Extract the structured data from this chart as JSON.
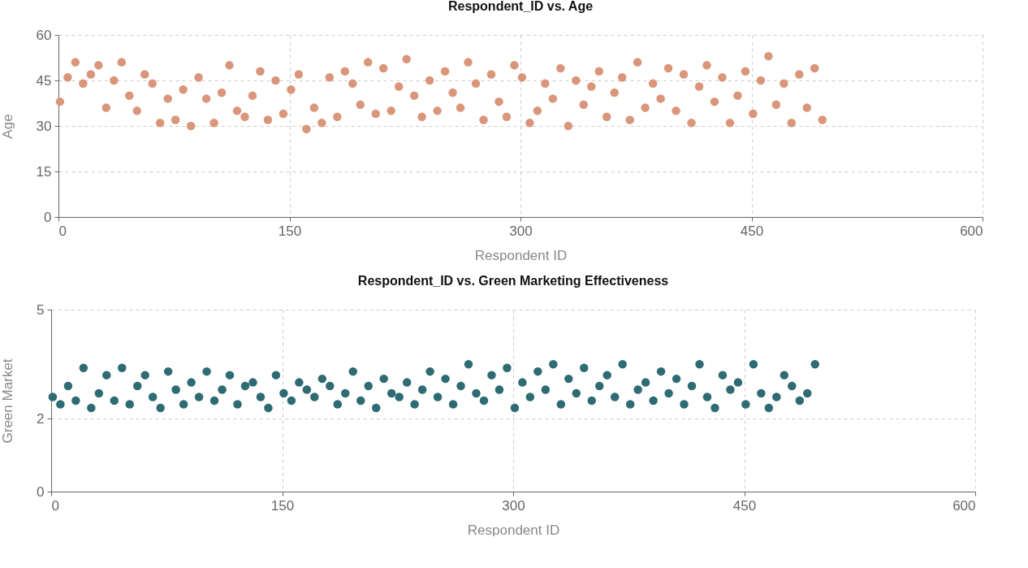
{
  "chart_data": [
    {
      "type": "scatter",
      "title": "Respondent_ID vs. Age",
      "xlabel": "Respondent ID",
      "ylabel": "Age",
      "xlim": [
        0,
        600
      ],
      "xticks": [
        0,
        150,
        300,
        450,
        600
      ],
      "ylim": [
        0,
        60
      ],
      "yticks": [
        0,
        15,
        30,
        45,
        60
      ],
      "grid": true,
      "marker": "circle",
      "x": [
        1,
        6,
        11,
        16,
        21,
        26,
        31,
        36,
        41,
        46,
        51,
        56,
        61,
        66,
        71,
        76,
        81,
        86,
        91,
        96,
        101,
        106,
        111,
        116,
        121,
        126,
        131,
        136,
        141,
        146,
        151,
        156,
        161,
        166,
        171,
        176,
        181,
        186,
        191,
        196,
        201,
        206,
        211,
        216,
        221,
        226,
        231,
        236,
        241,
        246,
        251,
        256,
        261,
        266,
        271,
        276,
        281,
        286,
        291,
        296,
        301,
        306,
        311,
        316,
        321,
        326,
        331,
        336,
        341,
        346,
        351,
        356,
        361,
        366,
        371,
        376,
        381,
        386,
        391,
        396,
        401,
        406,
        411,
        416,
        421,
        426,
        431,
        436,
        441,
        446,
        451,
        456,
        461,
        466,
        471,
        476,
        481,
        486,
        491,
        496
      ],
      "series": [
        {
          "color": "#d9967a",
          "values": [
            38,
            46,
            51,
            44,
            47,
            50,
            36,
            45,
            51,
            40,
            35,
            47,
            44,
            31,
            39,
            32,
            42,
            30,
            46,
            39,
            31,
            41,
            50,
            35,
            33,
            40,
            48,
            32,
            45,
            34,
            42,
            47,
            29,
            36,
            31,
            46,
            33,
            48,
            44,
            37,
            51,
            34,
            49,
            35,
            43,
            52,
            40,
            33,
            45,
            35,
            48,
            41,
            36,
            51,
            44,
            32,
            47,
            38,
            33,
            50,
            46,
            31,
            35,
            44,
            39,
            49,
            30,
            45,
            37,
            43,
            48,
            33,
            41,
            46,
            32,
            51,
            36,
            44,
            39,
            49,
            35,
            47,
            31,
            43,
            50,
            38,
            46,
            31,
            40,
            48,
            34,
            45,
            53,
            37,
            44,
            31,
            47,
            36,
            49,
            32
          ]
        }
      ]
    },
    {
      "type": "scatter",
      "title": "Respondent_ID vs. Green Marketing Effectiveness",
      "xlabel": "Respondent ID",
      "ylabel": "Green Market",
      "xlim": [
        0,
        600
      ],
      "xticks": [
        0,
        150,
        300,
        450,
        600
      ],
      "ylim": [
        0,
        5
      ],
      "yticks": [
        0,
        2,
        5
      ],
      "grid": true,
      "marker": "circle",
      "x": [
        1,
        6,
        11,
        16,
        21,
        26,
        31,
        36,
        41,
        46,
        51,
        56,
        61,
        66,
        71,
        76,
        81,
        86,
        91,
        96,
        101,
        106,
        111,
        116,
        121,
        126,
        131,
        136,
        141,
        146,
        151,
        156,
        161,
        166,
        171,
        176,
        181,
        186,
        191,
        196,
        201,
        206,
        211,
        216,
        221,
        226,
        231,
        236,
        241,
        246,
        251,
        256,
        261,
        266,
        271,
        276,
        281,
        286,
        291,
        296,
        301,
        306,
        311,
        316,
        321,
        326,
        331,
        336,
        341,
        346,
        351,
        356,
        361,
        366,
        371,
        376,
        381,
        386,
        391,
        396,
        401,
        406,
        411,
        416,
        421,
        426,
        431,
        436,
        441,
        446,
        451,
        456,
        461,
        466,
        471,
        476,
        481,
        486,
        491,
        496
      ],
      "series": [
        {
          "color": "#2e6b73",
          "values": [
            2.6,
            2.4,
            2.9,
            2.5,
            3.4,
            2.3,
            2.7,
            3.2,
            2.5,
            3.4,
            2.4,
            2.9,
            3.2,
            2.6,
            2.3,
            3.3,
            2.8,
            2.4,
            3.0,
            2.6,
            3.3,
            2.5,
            2.8,
            3.2,
            2.4,
            2.9,
            3.0,
            2.6,
            2.3,
            3.2,
            2.7,
            2.5,
            3.0,
            2.8,
            2.6,
            3.1,
            2.9,
            2.4,
            2.7,
            3.3,
            2.5,
            2.9,
            2.3,
            3.1,
            2.7,
            2.6,
            3.0,
            2.4,
            2.8,
            3.3,
            2.6,
            3.1,
            2.4,
            2.9,
            3.5,
            2.7,
            2.5,
            3.2,
            2.8,
            3.4,
            2.3,
            3.0,
            2.6,
            3.3,
            2.8,
            3.5,
            2.4,
            3.1,
            2.7,
            3.4,
            2.5,
            2.9,
            3.2,
            2.6,
            3.5,
            2.4,
            2.8,
            3.0,
            2.5,
            3.3,
            2.7,
            3.1,
            2.4,
            2.9,
            3.5,
            2.6,
            2.3,
            3.2,
            2.8,
            3.0,
            2.4,
            3.5,
            2.7,
            2.3,
            2.6,
            3.2,
            2.9,
            2.5,
            2.7,
            3.5
          ]
        }
      ]
    }
  ]
}
